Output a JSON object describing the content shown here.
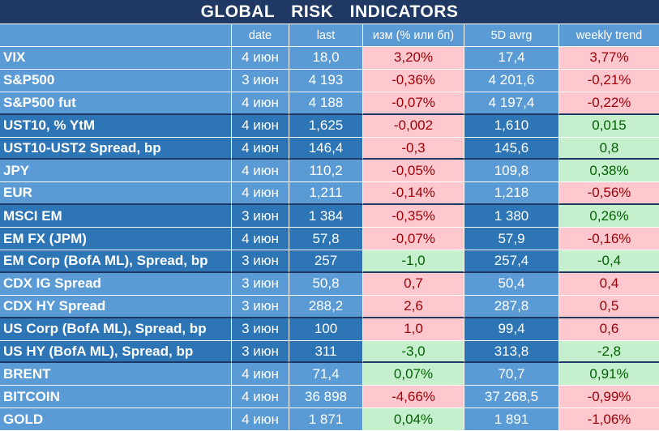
{
  "title": "GLOBAL   RISK   INDICATORS",
  "headers": [
    "",
    "date",
    "last",
    "изм (% или бп)",
    "5D avrg",
    "weekly trend"
  ],
  "rows": [
    {
      "name": "VIX",
      "date": "4 июн",
      "last": "18,0",
      "chg": "3,20%",
      "avg": "17,4",
      "trend": "3,77%",
      "band": "light",
      "chg_tone": "neg",
      "trend_tone": "neg"
    },
    {
      "name": "S&P500",
      "date": "3 июн",
      "last": "4 193",
      "chg": "-0,36%",
      "avg": "4 201,6",
      "trend": "-0,21%",
      "band": "light",
      "chg_tone": "neg",
      "trend_tone": "neg"
    },
    {
      "name": "S&P500 fut",
      "date": "4 июн",
      "last": "4 188",
      "chg": "-0,07%",
      "avg": "4 197,4",
      "trend": "-0,22%",
      "band": "light",
      "chg_tone": "neg",
      "trend_tone": "neg",
      "end": true
    },
    {
      "name": "UST10, % YtM",
      "date": "4 июн",
      "last": "1,625",
      "chg": "-0,002",
      "avg": "1,610",
      "trend": "0,015",
      "band": "dark",
      "chg_tone": "neg",
      "trend_tone": "pos"
    },
    {
      "name": "UST10-UST2 Spread, bp",
      "date": "4 июн",
      "last": "146,4",
      "chg": "-0,3",
      "avg": "145,6",
      "trend": "0,8",
      "band": "dark",
      "chg_tone": "neg",
      "trend_tone": "pos",
      "end": true
    },
    {
      "name": "JPY",
      "date": "4 июн",
      "last": "110,2",
      "chg": "-0,05%",
      "avg": "109,8",
      "trend": "0,38%",
      "band": "light",
      "chg_tone": "neg",
      "trend_tone": "pos"
    },
    {
      "name": "EUR",
      "date": "4 июн",
      "last": "1,211",
      "chg": "-0,14%",
      "avg": "1,218",
      "trend": "-0,56%",
      "band": "light",
      "chg_tone": "neg",
      "trend_tone": "neg",
      "end": true
    },
    {
      "name": "MSCI EM",
      "date": "3 июн",
      "last": "1 384",
      "chg": "-0,35%",
      "avg": "1 380",
      "trend": "0,26%",
      "band": "dark",
      "chg_tone": "neg",
      "trend_tone": "pos"
    },
    {
      "name": "EM FX (JPM)",
      "date": "4 июн",
      "last": "57,8",
      "chg": "-0,07%",
      "avg": "57,9",
      "trend": "-0,16%",
      "band": "dark",
      "chg_tone": "neg",
      "trend_tone": "neg"
    },
    {
      "name": "EM Corp (BofA ML), Spread, bp",
      "date": "3 июн",
      "last": "257",
      "chg": "-1,0",
      "avg": "257,4",
      "trend": "-0,4",
      "band": "dark",
      "chg_tone": "pos",
      "trend_tone": "pos",
      "end": true
    },
    {
      "name": "CDX IG Spread",
      "date": "3 июн",
      "last": "50,8",
      "chg": "0,7",
      "avg": "50,4",
      "trend": "0,4",
      "band": "light",
      "chg_tone": "neg",
      "trend_tone": "neg"
    },
    {
      "name": "CDX HY Spread",
      "date": "3 июн",
      "last": "288,2",
      "chg": "2,6",
      "avg": "287,8",
      "trend": "0,5",
      "band": "light",
      "chg_tone": "neg",
      "trend_tone": "neg",
      "end": true
    },
    {
      "name": "US Corp (BofA ML), Spread, bp",
      "date": "3 июн",
      "last": "100",
      "chg": "1,0",
      "avg": "99,4",
      "trend": "0,6",
      "band": "dark",
      "chg_tone": "neg",
      "trend_tone": "neg"
    },
    {
      "name": "US HY (BofA ML), Spread, bp",
      "date": "3 июн",
      "last": "311",
      "chg": "-3,0",
      "avg": "313,8",
      "trend": "-2,8",
      "band": "dark",
      "chg_tone": "pos",
      "trend_tone": "pos",
      "end": true
    },
    {
      "name": "BRENT",
      "date": "4 июн",
      "last": "71,4",
      "chg": "0,07%",
      "avg": "70,7",
      "trend": "0,91%",
      "band": "light",
      "chg_tone": "pos",
      "trend_tone": "pos"
    },
    {
      "name": "BITCOIN",
      "date": "4 июн",
      "last": "36 898",
      "chg": "-4,66%",
      "avg": "37 268,5",
      "trend": "-0,99%",
      "band": "light",
      "chg_tone": "neg",
      "trend_tone": "neg"
    },
    {
      "name": "GOLD",
      "date": "4 июн",
      "last": "1 871",
      "chg": "0,04%",
      "avg": "1 891",
      "trend": "-1,06%",
      "band": "light",
      "chg_tone": "pos",
      "trend_tone": "neg"
    }
  ]
}
